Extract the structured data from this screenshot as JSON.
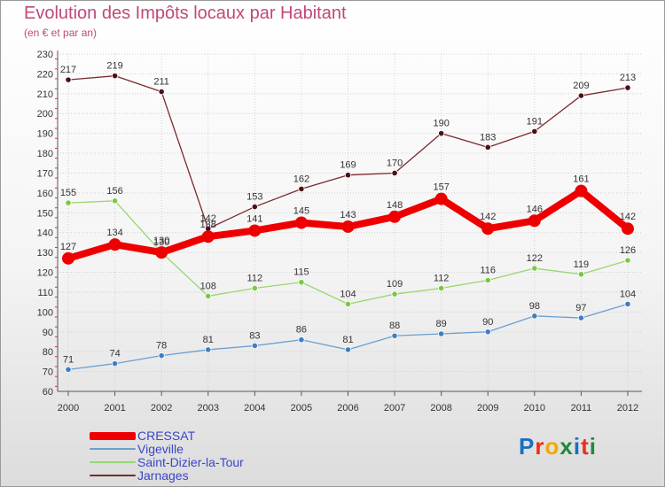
{
  "title": "Evolution des Impôts locaux par Habitant",
  "subtitle": "(en € et par an)",
  "logo": {
    "text": "Proxiti",
    "colors": [
      "#1a6fc4",
      "#e8301c",
      "#f2a900",
      "#1f8a3a",
      "#1a6fc4",
      "#e8301c",
      "#1f8a3a"
    ]
  },
  "chart_data": {
    "type": "line",
    "title": "Evolution des Impôts locaux par Habitant",
    "subtitle": "(en € et par an)",
    "x": [
      "2000",
      "2001",
      "2002",
      "2003",
      "2004",
      "2005",
      "2006",
      "2007",
      "2008",
      "2009",
      "2010",
      "2011",
      "2012"
    ],
    "yticks": [
      60,
      70,
      80,
      90,
      100,
      110,
      120,
      130,
      140,
      150,
      160,
      170,
      180,
      190,
      200,
      210,
      220,
      230
    ],
    "ylim": [
      60,
      230
    ],
    "grid": true,
    "legend_position": "bottom",
    "series": [
      {
        "name": "Jarnages",
        "color": "#7a2a2e",
        "marker": "#4a1116",
        "values": [
          217,
          219,
          211,
          142,
          153,
          162,
          169,
          170,
          190,
          183,
          191,
          209,
          213
        ]
      },
      {
        "name": "Saint-Dizier-la-Tour",
        "color": "#9ad66c",
        "marker": "#7ac943",
        "values": [
          155,
          156,
          130,
          108,
          112,
          115,
          104,
          109,
          112,
          116,
          122,
          119,
          126
        ]
      },
      {
        "name": "Vigeville",
        "color": "#6b9fd1",
        "marker": "#3d7ec4",
        "values": [
          71,
          74,
          78,
          81,
          83,
          86,
          81,
          88,
          89,
          90,
          98,
          97,
          104
        ]
      },
      {
        "name": "CRESSAT",
        "color": "#ee0000",
        "marker": "#ee0000",
        "values": [
          127,
          134,
          130,
          138,
          141,
          145,
          143,
          148,
          157,
          142,
          146,
          161,
          142
        ]
      }
    ],
    "legend": [
      "CRESSAT",
      "Vigeville",
      "Saint-Dizier-la-Tour",
      "Jarnages"
    ]
  }
}
